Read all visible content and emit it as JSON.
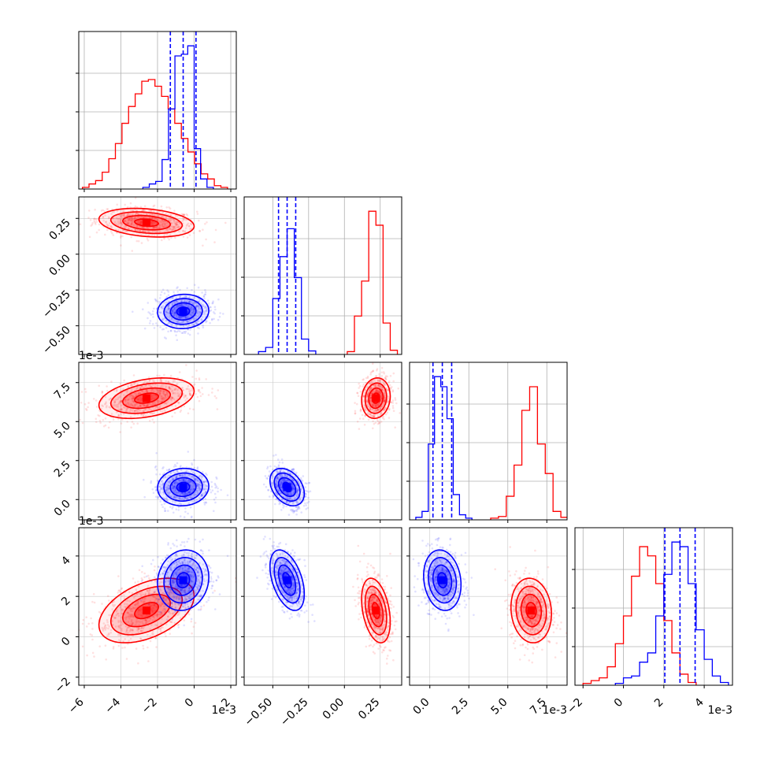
{
  "chart_data": {
    "type": "corner",
    "title": "",
    "parameters": 4,
    "grid": true,
    "legend": "none",
    "colors": {
      "series_a": "#ff0000",
      "series_b": "#0000ff"
    },
    "offset_labels": {
      "x0": "1e-3",
      "x2": "1e-3",
      "x3": "1e-3",
      "y2": "1e-3",
      "y3": "1e-3"
    },
    "axes": [
      {
        "range": [
          -6.3,
          2.3
        ],
        "ticks": [
          -6,
          -4,
          -2,
          0,
          2
        ],
        "tick_labels": [
          "−6",
          "−4",
          "−2",
          "0",
          "2"
        ]
      },
      {
        "range": [
          -0.7,
          0.4
        ],
        "ticks": [
          -0.5,
          -0.25,
          0.0,
          0.25
        ],
        "tick_labels": [
          "−0.50",
          "−0.25",
          "0.00",
          "0.25"
        ]
      },
      {
        "range": [
          -1.3,
          8.8
        ],
        "ticks": [
          0.0,
          2.5,
          5.0,
          7.5
        ],
        "tick_labels": [
          "0.0",
          "2.5",
          "5.0",
          "7.5"
        ]
      },
      {
        "range": [
          -2.4,
          5.4
        ],
        "ticks": [
          -2,
          0,
          2,
          4
        ],
        "tick_labels": [
          "−2",
          "0",
          "2",
          "4"
        ]
      }
    ],
    "series": [
      {
        "color": "#ff0000",
        "means": [
          -2.6,
          0.22,
          6.5,
          1.3
        ],
        "sds": [
          1.3,
          0.05,
          0.65,
          0.8
        ],
        "histograms": [
          {
            "edges": [
              -6.1,
              -5.74,
              -5.38,
              -5.02,
              -4.66,
              -4.3,
              -3.94,
              -3.58,
              -3.22,
              -2.86,
              -2.5,
              -2.14,
              -1.78,
              -1.42,
              -1.06,
              -0.7,
              -0.34,
              0.02,
              0.38,
              0.74,
              1.1,
              1.46,
              1.82
            ],
            "counts": [
              2,
              6,
              10,
              20,
              36,
              54,
              78,
              98,
              113,
              128,
              130,
              122,
              110,
              95,
              78,
              60,
              44,
              30,
              18,
              12,
              4,
              2
            ]
          },
          {
            "edges": [
              0.02,
              0.07,
              0.12,
              0.17,
              0.22,
              0.27,
              0.32,
              0.37
            ],
            "counts": [
              4,
              55,
              105,
              205,
              185,
              45,
              6
            ]
          },
          {
            "edges": [
              3.9,
              4.4,
              4.9,
              5.4,
              5.9,
              6.4,
              6.9,
              7.4,
              7.9,
              8.4,
              8.9
            ],
            "counts": [
              2,
              4,
              28,
              65,
              130,
              158,
              90,
              55,
              10,
              3
            ]
          },
          {
            "edges": [
              -2.0,
              -1.6,
              -1.2,
              -0.8,
              -0.4,
              0.0,
              0.4,
              0.8,
              1.2,
              1.6,
              2.0,
              2.4,
              2.8,
              3.2,
              3.6
            ],
            "counts": [
              2,
              5,
              8,
              20,
              45,
              75,
              118,
              150,
              140,
              110,
              70,
              35,
              12,
              3
            ]
          }
        ],
        "pairs": [
          {
            "x": 0,
            "y": 1,
            "corr": -0.25
          },
          {
            "x": 0,
            "y": 2,
            "corr": 0.35
          },
          {
            "x": 1,
            "y": 2,
            "corr": 0.1
          },
          {
            "x": 0,
            "y": 3,
            "corr": 0.45
          },
          {
            "x": 1,
            "y": 3,
            "corr": -0.35
          },
          {
            "x": 2,
            "y": 3,
            "corr": -0.1
          }
        ]
      },
      {
        "color": "#0000ff",
        "means": [
          -0.6,
          -0.4,
          0.8,
          2.8
        ],
        "sds": [
          0.7,
          0.06,
          0.6,
          0.75
        ],
        "quantiles": [
          [
            -1.3,
            -0.6,
            0.1
          ],
          [
            -0.46,
            -0.4,
            -0.34
          ],
          [
            0.2,
            0.8,
            1.4
          ],
          [
            2.05,
            2.8,
            3.55
          ]
        ],
        "histograms": [
          {
            "edges": [
              -2.8,
              -2.45,
              -2.1,
              -1.75,
              -1.4,
              -1.05,
              -0.7,
              -0.35,
              0.0,
              0.35,
              0.7,
              1.05
            ],
            "counts": [
              2,
              6,
              9,
              35,
              95,
              158,
              160,
              170,
              48,
              12,
              2
            ]
          },
          {
            "edges": [
              -0.6,
              -0.55,
              -0.5,
              -0.45,
              -0.4,
              -0.35,
              -0.3,
              -0.25,
              -0.2
            ],
            "counts": [
              4,
              10,
              80,
              140,
              180,
              110,
              22,
              5
            ]
          },
          {
            "edges": [
              -0.9,
              -0.5,
              -0.1,
              0.3,
              0.7,
              1.1,
              1.5,
              1.9,
              2.3,
              2.7
            ],
            "counts": [
              3,
              10,
              90,
              170,
              158,
              120,
              30,
              6,
              2
            ]
          },
          {
            "edges": [
              -0.4,
              0.0,
              0.4,
              0.8,
              1.2,
              1.6,
              2.0,
              2.4,
              2.8,
              3.2,
              3.6,
              4.0,
              4.4,
              4.8,
              5.2
            ],
            "counts": [
              2,
              8,
              10,
              25,
              35,
              75,
              120,
              155,
              150,
              110,
              60,
              28,
              10,
              3
            ]
          }
        ],
        "pairs": [
          {
            "x": 0,
            "y": 1,
            "corr": 0.05
          },
          {
            "x": 0,
            "y": 2,
            "corr": 0.05
          },
          {
            "x": 1,
            "y": 2,
            "corr": -0.35
          },
          {
            "x": 0,
            "y": 3,
            "corr": 0.1
          },
          {
            "x": 1,
            "y": 3,
            "corr": -0.45
          },
          {
            "x": 2,
            "y": 3,
            "corr": -0.15
          }
        ]
      }
    ]
  }
}
